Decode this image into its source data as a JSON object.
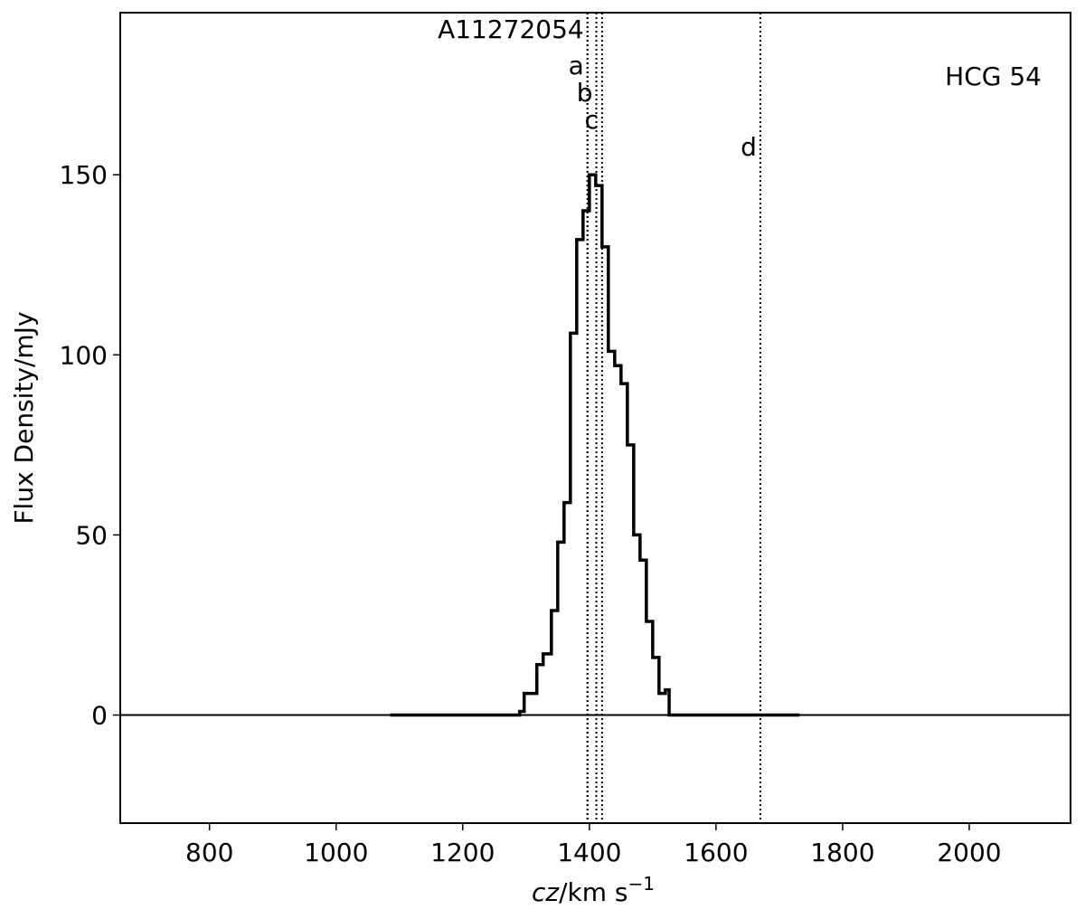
{
  "chart_data": {
    "type": "line",
    "step": "post",
    "annotation": "HCG 54",
    "x_label": [
      "cz",
      "/km s",
      "−1"
    ],
    "y_label": "Flux Density/mJy",
    "x": [
      1085,
      1290,
      1297,
      1317,
      1327,
      1340,
      1350,
      1360,
      1370,
      1380,
      1390,
      1400,
      1410,
      1420,
      1430,
      1440,
      1450,
      1460,
      1470,
      1480,
      1490,
      1500,
      1510,
      1520,
      1526,
      1732
    ],
    "series": [
      {
        "color": "#000000",
        "values": [
          0,
          1,
          6,
          14,
          17,
          29,
          48,
          59,
          106,
          132,
          140,
          150,
          147,
          130,
          101,
          97,
          92,
          75,
          50,
          43,
          26,
          16,
          6,
          7,
          0,
          0
        ]
      }
    ],
    "markers": [
      {
        "label": "A11272054",
        "x": 1397
      },
      {
        "label": "a",
        "x": 1397
      },
      {
        "label": "b",
        "x": 1411
      },
      {
        "label": "c",
        "x": 1420
      },
      {
        "label": "d",
        "x": 1670
      }
    ],
    "xlim": [
      659,
      2160
    ],
    "ylim": [
      -30,
      195
    ],
    "xticks": [
      800,
      1000,
      1200,
      1400,
      1600,
      1800,
      2000
    ],
    "yticks": [
      0,
      50,
      100,
      150
    ]
  }
}
